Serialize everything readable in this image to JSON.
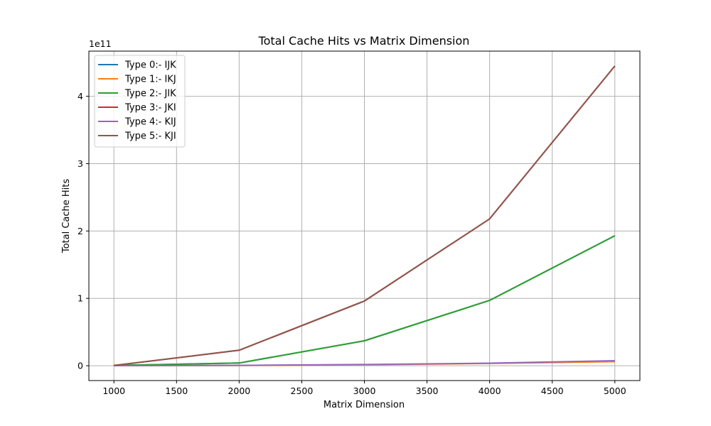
{
  "chart_data": {
    "type": "line",
    "title": "Total Cache Hits vs Matrix Dimension",
    "xlabel": "Matrix Dimension",
    "ylabel": "Total Cache Hits",
    "y_scale_label": "1e11",
    "y_scale_factor": 100000000000,
    "x": [
      1000,
      2000,
      3000,
      4000,
      5000
    ],
    "xlim": [
      800,
      5200
    ],
    "ylim": [
      -22000000000,
      467000000000
    ],
    "x_ticks": [
      1000,
      1500,
      2000,
      2500,
      3000,
      3500,
      4000,
      4500,
      5000
    ],
    "y_ticks": [
      0,
      1,
      2,
      3,
      4
    ],
    "grid": true,
    "legend_position": "upper-left",
    "series": [
      {
        "name": "Type 0:- IJK",
        "color": "#1f77b4",
        "values": [
          300000000,
          4000000000,
          37000000000,
          97000000000,
          193000000000
        ]
      },
      {
        "name": "Type 1:- IKJ",
        "color": "#ff7f0e",
        "values": [
          100000000,
          500000000,
          1500000000,
          3400000000,
          6000000000
        ]
      },
      {
        "name": "Type 2:- JIK",
        "color": "#2ca02c",
        "values": [
          300000000,
          4000000000,
          37000000000,
          97000000000,
          193000000000
        ]
      },
      {
        "name": "Type 3:- JKI",
        "color": "#d62728",
        "values": [
          300000000,
          23000000000,
          96000000000,
          218000000000,
          445000000000
        ]
      },
      {
        "name": "Type 4:- KIJ",
        "color": "#9467bd",
        "values": [
          100000000,
          600000000,
          1800000000,
          3800000000,
          7500000000
        ]
      },
      {
        "name": "Type 5:- KJI",
        "color": "#8c564b",
        "values": [
          300000000,
          23000000000,
          96000000000,
          218000000000,
          445000000000
        ]
      }
    ]
  }
}
